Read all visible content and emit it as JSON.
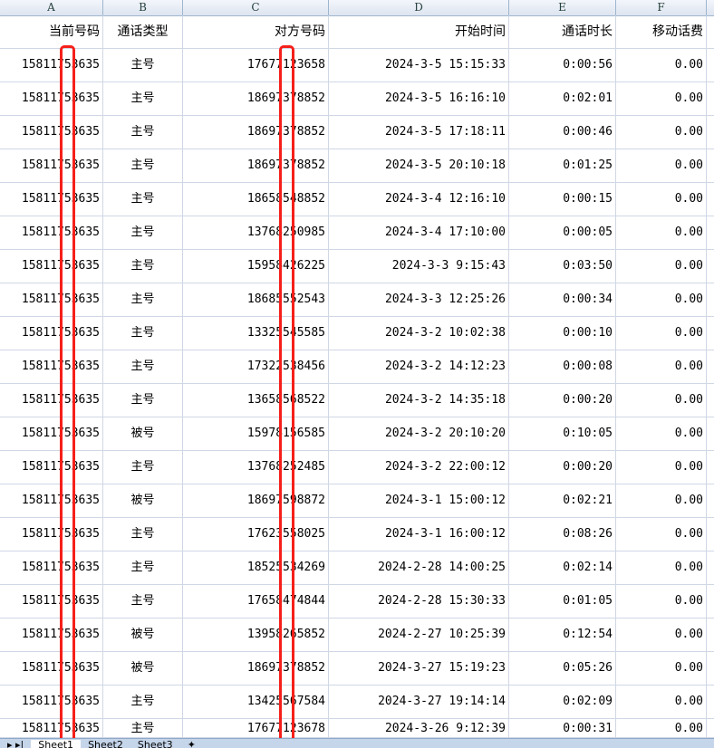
{
  "columns": [
    "A",
    "B",
    "C",
    "D",
    "E",
    "F"
  ],
  "headers": [
    "当前号码",
    "通话类型",
    "对方号码",
    "开始时间",
    "通话时长",
    "移动话费"
  ],
  "rows": [
    [
      "15811753635",
      "主号",
      "17677123658",
      "2024-3-5 15:15:33",
      "0:00:56",
      "0.00"
    ],
    [
      "15811753635",
      "主号",
      "18697378852",
      "2024-3-5 16:16:10",
      "0:02:01",
      "0.00"
    ],
    [
      "15811753635",
      "主号",
      "18697378852",
      "2024-3-5 17:18:11",
      "0:00:46",
      "0.00"
    ],
    [
      "15811753635",
      "主号",
      "18697378852",
      "2024-3-5 20:10:18",
      "0:01:25",
      "0.00"
    ],
    [
      "15811753635",
      "主号",
      "18658548852",
      "2024-3-4 12:16:10",
      "0:00:15",
      "0.00"
    ],
    [
      "15811753635",
      "主号",
      "13768250985",
      "2024-3-4 17:10:00",
      "0:00:05",
      "0.00"
    ],
    [
      "15811753635",
      "主号",
      "15958426225",
      "2024-3-3 9:15:43",
      "0:03:50",
      "0.00"
    ],
    [
      "15811753635",
      "主号",
      "18685552543",
      "2024-3-3 12:25:26",
      "0:00:34",
      "0.00"
    ],
    [
      "15811753635",
      "主号",
      "13325545585",
      "2024-3-2 10:02:38",
      "0:00:10",
      "0.00"
    ],
    [
      "15811753635",
      "主号",
      "17322538456",
      "2024-3-2 14:12:23",
      "0:00:08",
      "0.00"
    ],
    [
      "15811753635",
      "主号",
      "13658568522",
      "2024-3-2 14:35:18",
      "0:00:20",
      "0.00"
    ],
    [
      "15811753635",
      "被号",
      "15978156585",
      "2024-3-2 20:10:20",
      "0:10:05",
      "0.00"
    ],
    [
      "15811753635",
      "主号",
      "13768252485",
      "2024-3-2 22:00:12",
      "0:00:20",
      "0.00"
    ],
    [
      "15811753635",
      "被号",
      "18697598872",
      "2024-3-1 15:00:12",
      "0:02:21",
      "0.00"
    ],
    [
      "15811753635",
      "主号",
      "17623558025",
      "2024-3-1 16:00:12",
      "0:08:26",
      "0.00"
    ],
    [
      "15811753635",
      "主号",
      "18525534269",
      "2024-2-28 14:00:25",
      "0:02:14",
      "0.00"
    ],
    [
      "15811753635",
      "主号",
      "17658474844",
      "2024-2-28 15:30:33",
      "0:01:05",
      "0.00"
    ],
    [
      "15811753635",
      "被号",
      "13958265852",
      "2024-2-27 10:25:39",
      "0:12:54",
      "0.00"
    ],
    [
      "15811753635",
      "被号",
      "18697378852",
      "2024-3-27 15:19:23",
      "0:05:26",
      "0.00"
    ],
    [
      "15811753635",
      "主号",
      "13425567584",
      "2024-3-27 19:14:14",
      "0:02:09",
      "0.00"
    ],
    [
      "15811753635",
      "主号",
      "17677123678",
      "2024-3-26 9:12:39",
      "0:00:31",
      "0.00"
    ]
  ],
  "sheet_tabs": [
    "Sheet1",
    "Sheet2",
    "Sheet3"
  ],
  "redaction_color": "#f5201a"
}
